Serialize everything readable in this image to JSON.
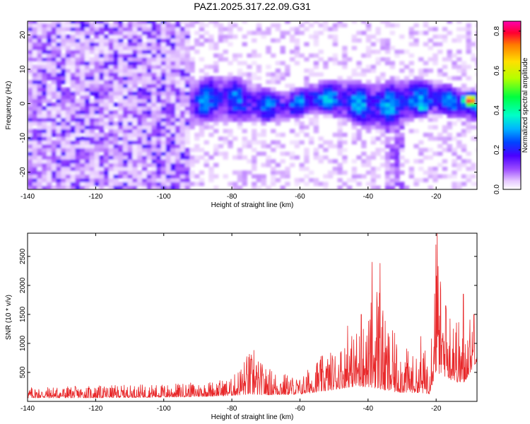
{
  "title": "PAZ1.2025.317.22.09.G31",
  "colors": {
    "snr_line": "#e8282a",
    "background": "#ffffff",
    "axis": "#000000"
  },
  "chart_data": [
    {
      "type": "heatmap",
      "name": "spectrogram",
      "xlabel": "Height of straight line (km)",
      "ylabel": "Frequency (Hz)",
      "xlim": [
        -140,
        -8
      ],
      "ylim": [
        -25,
        24
      ],
      "xticks": [
        -140,
        -120,
        -100,
        -80,
        -60,
        -40,
        -20
      ],
      "yticks": [
        -20,
        -10,
        0,
        10,
        20
      ],
      "colorbar": {
        "label": "Normalized spectral amplitude",
        "range": [
          0.0,
          0.85
        ],
        "ticks": [
          0.0,
          0.2,
          0.4,
          0.6,
          0.8
        ]
      },
      "features": [
        {
          "description": "diffuse noise across all frequencies",
          "x_range": [
            -140,
            -93
          ],
          "y_range": [
            -25,
            24
          ],
          "amplitude": 0.05
        },
        {
          "description": "signal band near 0 Hz",
          "x_range": [
            -92,
            -9
          ],
          "y_center": 0,
          "amplitude_range": [
            0.1,
            0.35
          ]
        },
        {
          "description": "peak near -24 km",
          "x": -24,
          "y": -1,
          "amplitude": 0.4
        },
        {
          "description": "strongest peak",
          "x": -10,
          "y": 1,
          "amplitude": 0.85
        }
      ]
    },
    {
      "type": "line",
      "name": "snr",
      "xlabel": "Height of straight line (km)",
      "ylabel": "SNR (10 * v/v)",
      "xlim": [
        -140,
        -8
      ],
      "ylim": [
        0,
        2900
      ],
      "xticks": [
        -140,
        -120,
        -100,
        -80,
        -60,
        -40,
        -20
      ],
      "yticks": [
        500,
        1000,
        1500,
        2000,
        2500
      ],
      "envelope": {
        "x": [
          -140,
          -120,
          -100,
          -90,
          -80,
          -75,
          -70,
          -60,
          -55,
          -50,
          -45,
          -40,
          -37,
          -35,
          -30,
          -25,
          -22,
          -20,
          -18,
          -15,
          -12,
          -10,
          -8
        ],
        "base": [
          60,
          60,
          70,
          80,
          100,
          120,
          110,
          120,
          160,
          200,
          250,
          250,
          220,
          180,
          150,
          150,
          130,
          500,
          450,
          350,
          300,
          500,
          700
        ],
        "peak": [
          250,
          270,
          300,
          330,
          400,
          880,
          600,
          400,
          750,
          900,
          1150,
          1500,
          2380,
          1400,
          1000,
          700,
          1100,
          2900,
          1700,
          1700,
          1200,
          1500,
          1200
        ]
      },
      "spikes": [
        {
          "x": -73.5,
          "y": 880
        },
        {
          "x": -46,
          "y": 1300
        },
        {
          "x": -42,
          "y": 1500
        },
        {
          "x": -38.8,
          "y": 2400
        },
        {
          "x": -36.5,
          "y": 2380
        },
        {
          "x": -24.5,
          "y": 1120
        },
        {
          "x": -20.1,
          "y": 2700
        },
        {
          "x": -19.7,
          "y": 2900
        },
        {
          "x": -17.2,
          "y": 1650
        },
        {
          "x": -15,
          "y": 1250
        },
        {
          "x": -12,
          "y": 1850
        },
        {
          "x": -8.9,
          "y": 1500
        }
      ]
    }
  ]
}
